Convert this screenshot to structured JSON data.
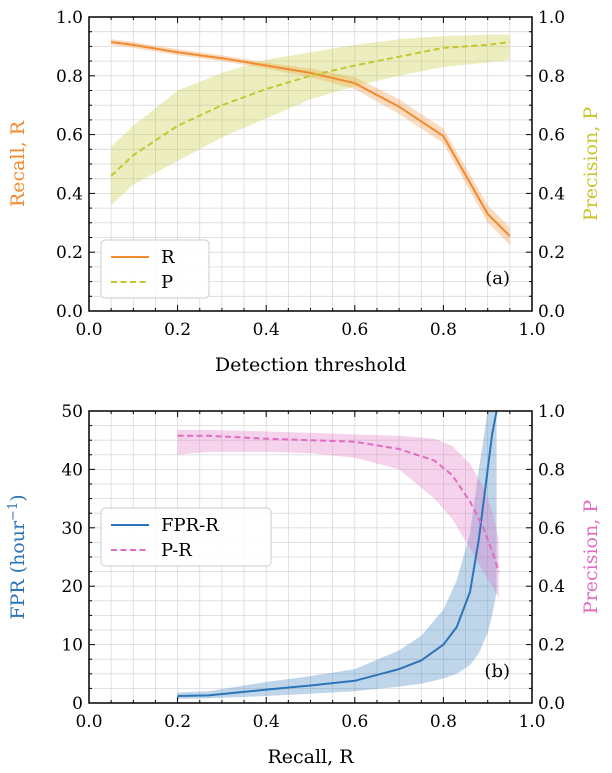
{
  "colors": {
    "recall": "#f28a2e",
    "precision_a": "#c4c72e",
    "fpr": "#2b74b8",
    "precision_b": "#e06cc0"
  },
  "chart_data": [
    {
      "type": "line",
      "panel_label": "(a)",
      "xlabel": "Detection threshold",
      "ylabel_left": "Recall, R",
      "ylabel_right": "Precision, P",
      "xlim": [
        0.0,
        1.0
      ],
      "ylim_left": [
        0.0,
        1.0
      ],
      "ylim_right": [
        0.0,
        1.0
      ],
      "x_ticks": [
        "0.0",
        "0.2",
        "0.4",
        "0.6",
        "0.8",
        "1.0"
      ],
      "y_left_ticks": [
        "0.0",
        "0.2",
        "0.4",
        "0.6",
        "0.8",
        "1.0"
      ],
      "y_right_ticks": [
        "0.0",
        "0.2",
        "0.4",
        "0.6",
        "0.8",
        "1.0"
      ],
      "grid": true,
      "legend_position": "lower-left",
      "series": [
        {
          "name": "R",
          "axis": "left",
          "style": "solid",
          "x": [
            0.05,
            0.1,
            0.2,
            0.3,
            0.4,
            0.5,
            0.6,
            0.7,
            0.8,
            0.9,
            0.95
          ],
          "y": [
            0.915,
            0.905,
            0.88,
            0.86,
            0.835,
            0.81,
            0.775,
            0.695,
            0.595,
            0.33,
            0.255
          ],
          "lower": [
            0.905,
            0.895,
            0.87,
            0.85,
            0.825,
            0.795,
            0.755,
            0.67,
            0.57,
            0.3,
            0.225
          ],
          "upper": [
            0.925,
            0.915,
            0.89,
            0.87,
            0.845,
            0.825,
            0.795,
            0.72,
            0.62,
            0.36,
            0.285
          ]
        },
        {
          "name": "P",
          "axis": "right",
          "style": "dashed",
          "x": [
            0.05,
            0.1,
            0.2,
            0.3,
            0.4,
            0.5,
            0.6,
            0.7,
            0.8,
            0.9,
            0.95
          ],
          "y": [
            0.46,
            0.53,
            0.63,
            0.7,
            0.755,
            0.8,
            0.835,
            0.865,
            0.895,
            0.905,
            0.915
          ],
          "lower": [
            0.36,
            0.43,
            0.51,
            0.59,
            0.655,
            0.72,
            0.765,
            0.8,
            0.83,
            0.845,
            0.855
          ],
          "upper": [
            0.56,
            0.63,
            0.75,
            0.81,
            0.855,
            0.88,
            0.905,
            0.925,
            0.935,
            0.94,
            0.94
          ]
        }
      ]
    },
    {
      "type": "line",
      "panel_label": "(b)",
      "xlabel": "Recall, R",
      "ylabel_left": "FPR (hour",
      "ylabel_left_sup": "−1",
      "ylabel_left_end": ")",
      "ylabel_right": "Precision, P",
      "xlim": [
        0.0,
        1.0
      ],
      "ylim_left": [
        0,
        50
      ],
      "ylim_right": [
        0.0,
        1.0
      ],
      "x_ticks": [
        "0.0",
        "0.2",
        "0.4",
        "0.6",
        "0.8",
        "1.0"
      ],
      "y_left_ticks": [
        "0",
        "10",
        "20",
        "30",
        "40",
        "50"
      ],
      "y_right_ticks": [
        "0.0",
        "0.2",
        "0.4",
        "0.6",
        "0.8",
        "1.0"
      ],
      "grid": true,
      "legend_position": "center-left",
      "series": [
        {
          "name": "FPR-R",
          "axis": "left",
          "style": "solid",
          "x": [
            0.2,
            0.27,
            0.4,
            0.5,
            0.6,
            0.7,
            0.75,
            0.8,
            0.83,
            0.86,
            0.88,
            0.9,
            0.91,
            0.92
          ],
          "y": [
            1.2,
            1.3,
            2.3,
            3.0,
            3.8,
            5.8,
            7.3,
            10.0,
            13.0,
            19.0,
            28.0,
            40.0,
            46.0,
            50.0
          ],
          "lower": [
            0.7,
            0.8,
            1.2,
            1.6,
            2.0,
            2.8,
            3.3,
            4.2,
            5.0,
            6.5,
            8.5,
            12.0,
            15.0,
            19.0
          ],
          "upper": [
            1.8,
            2.0,
            3.6,
            4.6,
            5.8,
            9.0,
            11.5,
            16.0,
            21.0,
            29.0,
            40.0,
            50.0,
            50.0,
            50.0
          ]
        },
        {
          "name": "P-R",
          "axis": "right",
          "style": "dashed",
          "x": [
            0.2,
            0.27,
            0.4,
            0.5,
            0.6,
            0.7,
            0.78,
            0.82,
            0.86,
            0.89,
            0.91,
            0.925
          ],
          "y": [
            0.915,
            0.915,
            0.905,
            0.9,
            0.895,
            0.87,
            0.83,
            0.78,
            0.69,
            0.6,
            0.52,
            0.45
          ],
          "lower": [
            0.85,
            0.86,
            0.86,
            0.855,
            0.84,
            0.8,
            0.7,
            0.63,
            0.53,
            0.45,
            0.4,
            0.36
          ],
          "upper": [
            0.935,
            0.935,
            0.93,
            0.925,
            0.92,
            0.915,
            0.905,
            0.88,
            0.82,
            0.74,
            0.66,
            0.56
          ]
        }
      ]
    }
  ]
}
